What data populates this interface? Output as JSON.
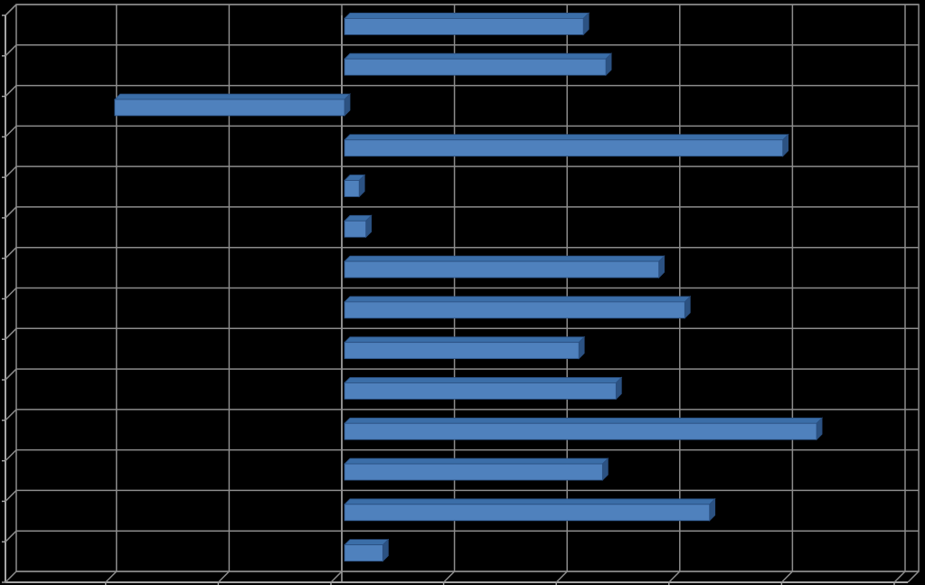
{
  "chart_data": {
    "type": "bar",
    "orientation": "horizontal",
    "style": "3d",
    "title": "",
    "xlabel": "",
    "ylabel": "",
    "categories": [
      "",
      "",
      "",
      "",
      "",
      "",
      "",
      "",
      "",
      "",
      "",
      "",
      "",
      ""
    ],
    "values": [
      2.12,
      2.32,
      -2.04,
      3.89,
      0.13,
      0.19,
      2.79,
      3.02,
      2.08,
      2.41,
      4.19,
      2.29,
      3.24,
      0.34
    ],
    "xlim": [
      -3,
      5
    ],
    "x_major_unit": 1,
    "grid": true,
    "legend": "none",
    "colors": {
      "background": "#000000",
      "bar_front": "#4F81BD",
      "bar_top": "#3B6EA8",
      "bar_side": "#2C5282",
      "bar_edge": "#2A4F80",
      "gridline": "#8C8C8C",
      "axis": "#A6A6A6"
    }
  }
}
